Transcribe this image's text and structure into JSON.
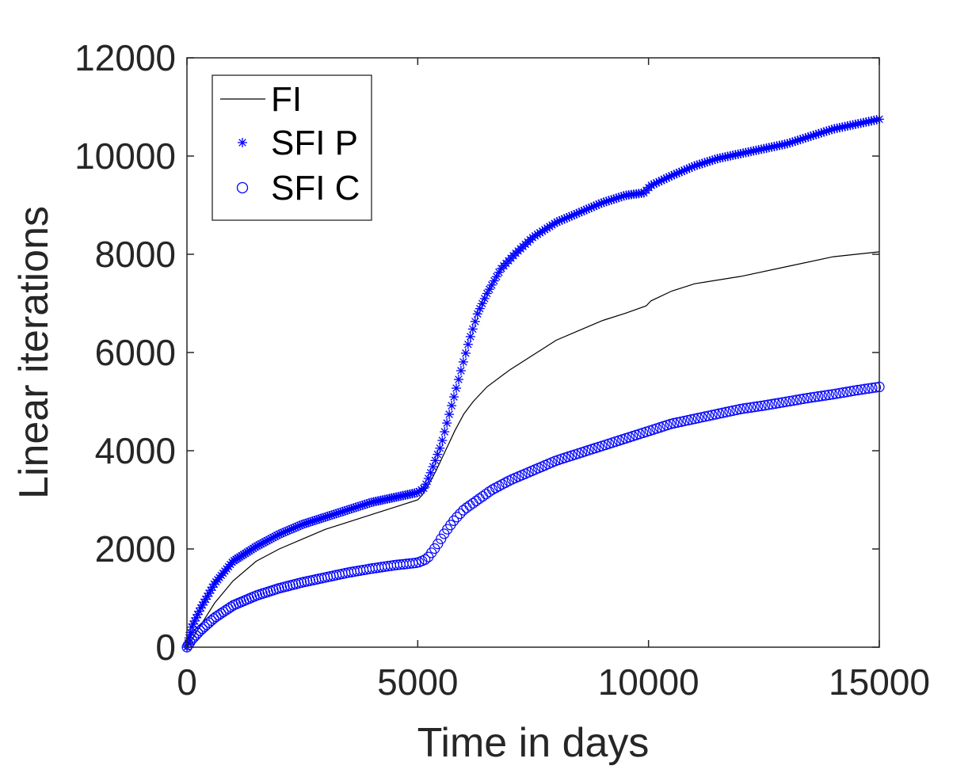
{
  "chart_data": {
    "type": "line",
    "xlabel": "Time in days",
    "ylabel": "Linear iterations",
    "xlim": [
      0,
      15000
    ],
    "ylim": [
      0,
      12000
    ],
    "xticks": [
      0,
      5000,
      10000,
      15000
    ],
    "yticks": [
      0,
      2000,
      4000,
      6000,
      8000,
      10000,
      12000
    ],
    "grid": false,
    "box": true,
    "legend_position": "top-left",
    "series": [
      {
        "name": "FI",
        "marker": "line",
        "color": "#000000",
        "x": [
          0,
          100,
          300,
          600,
          1000,
          1500,
          2000,
          2500,
          3000,
          3500,
          4000,
          4500,
          5000,
          5100,
          5200,
          5400,
          5600,
          5800,
          6000,
          6200,
          6500,
          7000,
          7500,
          8000,
          8500,
          9000,
          9500,
          9950,
          10050,
          10500,
          11000,
          12000,
          13000,
          14000,
          15000
        ],
        "y": [
          0,
          150,
          450,
          900,
          1350,
          1750,
          2000,
          2200,
          2400,
          2550,
          2700,
          2850,
          3000,
          3100,
          3250,
          3600,
          4000,
          4400,
          4750,
          5000,
          5300,
          5650,
          5950,
          6250,
          6450,
          6650,
          6800,
          6950,
          7050,
          7250,
          7400,
          7550,
          7750,
          7950,
          8050
        ]
      },
      {
        "name": "SFI P",
        "marker": "asterisk",
        "color": "#0000ff",
        "x": [
          0,
          100,
          300,
          600,
          1000,
          1500,
          2000,
          2500,
          3000,
          3500,
          4000,
          4500,
          5000,
          5150,
          5300,
          5500,
          5700,
          5900,
          6100,
          6300,
          6500,
          6800,
          7100,
          7500,
          8000,
          8500,
          9000,
          9500,
          9900,
          10050,
          10500,
          11000,
          11500,
          12000,
          12500,
          13000,
          13500,
          14000,
          14500,
          15000
        ],
        "y": [
          0,
          400,
          800,
          1300,
          1750,
          2050,
          2300,
          2500,
          2650,
          2800,
          2950,
          3050,
          3150,
          3250,
          3600,
          4100,
          4800,
          5500,
          6200,
          6800,
          7200,
          7700,
          8000,
          8350,
          8650,
          8850,
          9050,
          9200,
          9250,
          9400,
          9600,
          9800,
          9950,
          10050,
          10150,
          10250,
          10400,
          10550,
          10650,
          10750
        ]
      },
      {
        "name": "SFI C",
        "marker": "circle",
        "color": "#0000ff",
        "x": [
          0,
          100,
          300,
          600,
          1000,
          1500,
          2000,
          2500,
          3000,
          3500,
          4000,
          4500,
          5000,
          5200,
          5400,
          5600,
          5800,
          6000,
          6300,
          6600,
          7000,
          7500,
          8000,
          8500,
          9000,
          9500,
          10000,
          10500,
          11000,
          11500,
          12000,
          12500,
          13000,
          13500,
          14000,
          14500,
          15000
        ],
        "y": [
          0,
          150,
          350,
          600,
          850,
          1050,
          1200,
          1320,
          1420,
          1520,
          1600,
          1670,
          1720,
          1800,
          2050,
          2350,
          2600,
          2800,
          3000,
          3200,
          3400,
          3600,
          3800,
          3950,
          4100,
          4250,
          4400,
          4550,
          4650,
          4750,
          4850,
          4920,
          5000,
          5080,
          5150,
          5230,
          5300
        ]
      }
    ]
  }
}
